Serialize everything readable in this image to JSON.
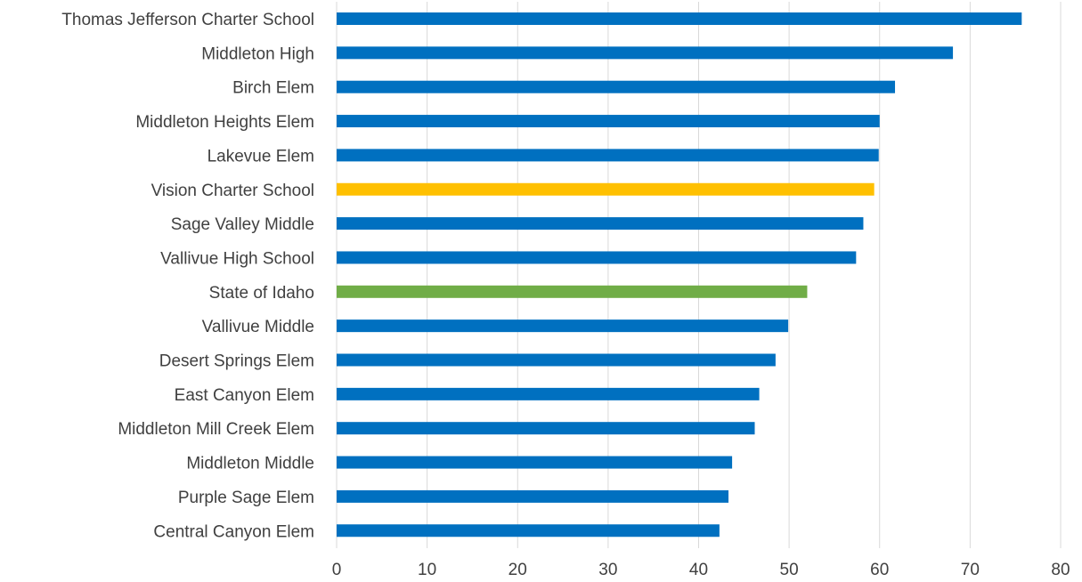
{
  "chart_data": {
    "type": "bar",
    "orientation": "horizontal",
    "title": "",
    "xlabel": "",
    "ylabel": "",
    "xlim": [
      0,
      80
    ],
    "x_ticks": [
      0,
      10,
      20,
      30,
      40,
      50,
      60,
      70,
      80
    ],
    "grid": true,
    "legend": "none",
    "categories": [
      "Thomas Jefferson Charter School",
      "Middleton High",
      "Birch Elem",
      "Middleton Heights Elem",
      "Lakevue Elem",
      "Vision Charter School",
      "Sage Valley Middle",
      "Vallivue High School",
      "State of Idaho",
      "Vallivue Middle",
      "Desert Springs Elem",
      "East Canyon Elem",
      "Middleton Mill Creek Elem",
      "Middleton Middle",
      "Purple Sage Elem",
      "Central Canyon Elem"
    ],
    "values": [
      75.7,
      68.1,
      61.7,
      60.0,
      59.9,
      59.4,
      58.2,
      57.4,
      52.0,
      49.9,
      48.5,
      46.7,
      46.2,
      43.7,
      43.3,
      42.3
    ],
    "bar_colors": [
      "#0070C0",
      "#0070C0",
      "#0070C0",
      "#0070C0",
      "#0070C0",
      "#FFC000",
      "#0070C0",
      "#0070C0",
      "#70AD47",
      "#0070C0",
      "#0070C0",
      "#0070C0",
      "#0070C0",
      "#0070C0",
      "#0070C0",
      "#0070C0"
    ]
  }
}
